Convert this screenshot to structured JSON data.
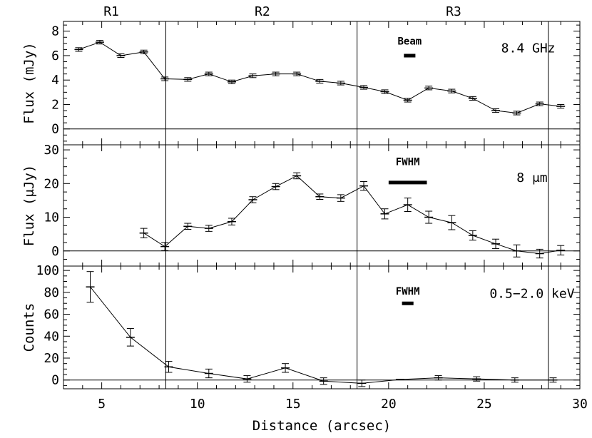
{
  "chart_data": {
    "type": "line",
    "xlabel": "Distance (arcsec)",
    "xlim": [
      3,
      30
    ],
    "xticks": [
      5,
      10,
      15,
      20,
      25,
      30
    ],
    "xtick_labels": [
      "5",
      "10",
      "15",
      "20",
      "25",
      "30"
    ],
    "region_boundaries": [
      8.35,
      18.35,
      28.35
    ],
    "region_labels": [
      {
        "text": "R1",
        "x": 5.5
      },
      {
        "text": "R2",
        "x": 13.4
      },
      {
        "text": "R3",
        "x": 23.4
      }
    ],
    "panels": [
      {
        "name": "radio",
        "ylabel": "Flux (mJy)",
        "ylim": [
          -1.3,
          8.8
        ],
        "yticks": [
          0,
          2,
          4,
          6,
          8
        ],
        "ytick_labels": [
          "0",
          "2",
          "4",
          "6",
          "8"
        ],
        "label": "8.4 GHz",
        "label_x": 27.3,
        "label_y": 6.25,
        "scale_label": "Beam",
        "scale_bar": [
          20.8,
          21.4
        ],
        "scale_y": 6.0,
        "scale_label_y": 6.9,
        "zero_line": true,
        "x": [
          3.8,
          4.9,
          6.0,
          7.2,
          8.3,
          9.5,
          10.6,
          11.8,
          12.9,
          14.1,
          15.2,
          16.4,
          17.5,
          18.7,
          19.8,
          21.0,
          22.1,
          23.3,
          24.4,
          25.6,
          26.7,
          27.9,
          29.0
        ],
        "values": [
          6.5,
          7.1,
          6.0,
          6.3,
          4.1,
          4.05,
          4.5,
          3.85,
          4.35,
          4.5,
          4.5,
          3.9,
          3.75,
          3.4,
          3.05,
          2.35,
          3.35,
          3.1,
          2.5,
          1.5,
          1.3,
          2.05,
          1.85
        ],
        "errors": [
          0.15,
          0.15,
          0.15,
          0.15,
          0.15,
          0.15,
          0.15,
          0.15,
          0.15,
          0.15,
          0.15,
          0.15,
          0.15,
          0.15,
          0.15,
          0.15,
          0.15,
          0.15,
          0.15,
          0.15,
          0.15,
          0.15,
          0.15
        ]
      },
      {
        "name": "infrared",
        "ylabel": "Flux (μJy)",
        "ylim": [
          -4.5,
          31.5
        ],
        "yticks": [
          0,
          10,
          20,
          30
        ],
        "ytick_labels": [
          "0",
          "10",
          "20",
          "30"
        ],
        "label": "8 μm",
        "label_x": 27.5,
        "label_y": 20.5,
        "scale_label": "FWHM",
        "scale_bar": [
          20.0,
          22.0
        ],
        "scale_y": 20.3,
        "scale_label_y": 25.5,
        "zero_line": true,
        "x": [
          7.2,
          8.3,
          9.5,
          10.6,
          11.8,
          12.9,
          14.1,
          15.2,
          16.4,
          17.5,
          18.7,
          19.8,
          21.0,
          22.1,
          23.3,
          24.4,
          25.6,
          26.7,
          27.9,
          29.0
        ],
        "values": [
          5.3,
          1.3,
          7.3,
          6.7,
          8.7,
          15.2,
          19.1,
          22.3,
          16.1,
          15.7,
          19.3,
          11.0,
          13.7,
          10.0,
          8.4,
          4.6,
          2.1,
          0.0,
          -0.8,
          0.2
        ],
        "errors": [
          1.4,
          1.2,
          0.9,
          0.9,
          1.0,
          0.9,
          0.9,
          0.9,
          0.8,
          1.0,
          1.3,
          1.5,
          2.0,
          1.8,
          2.1,
          1.4,
          1.4,
          1.8,
          1.3,
          1.4
        ]
      },
      {
        "name": "xray",
        "ylabel": "Counts",
        "ylim": [
          -8,
          104
        ],
        "yticks": [
          0,
          20,
          40,
          60,
          80,
          100
        ],
        "ytick_labels": [
          "0",
          "20",
          "40",
          "60",
          "80",
          "100"
        ],
        "label": "0.5−2.0 keV",
        "label_x": 27.5,
        "label_y": 75,
        "scale_label": "FWHM",
        "scale_bar": [
          20.7,
          21.3
        ],
        "scale_y": 70,
        "scale_label_y": 78,
        "zero_line": true,
        "x": [
          4.4,
          6.5,
          8.5,
          10.6,
          12.6,
          14.6,
          16.6,
          18.6,
          20.6,
          22.6,
          24.6,
          26.6,
          28.6
        ],
        "values": [
          85,
          39,
          12,
          6,
          1,
          11,
          -1,
          -3,
          0.5,
          2,
          1,
          0,
          0
        ],
        "errors": [
          14,
          8,
          5,
          4,
          3,
          4,
          3,
          3,
          0.3,
          2,
          2,
          2,
          2
        ]
      }
    ]
  }
}
